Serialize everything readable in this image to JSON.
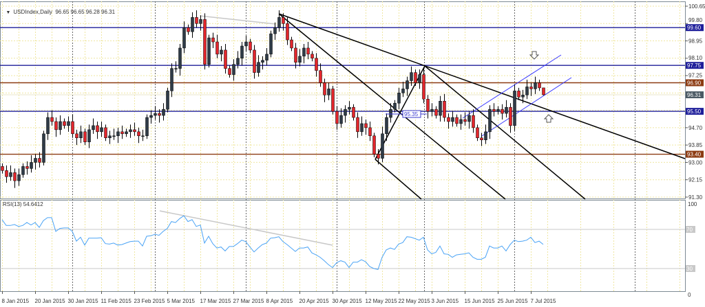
{
  "header": {
    "symbol_title": "USDIndex,Daily",
    "ohlc": "96.65 96.65 96.28 96.31"
  },
  "rsi_header": "RSI(13) 54.6412",
  "annotations": {
    "price_label": "95.35"
  },
  "colors": {
    "bull": "#2f3b47",
    "bear": "#e3262c",
    "blue_level": "#1e1e9a",
    "brown_level": "#8c3b12",
    "current": "#4b5a64",
    "rsi": "#4aa3f5",
    "grid": "#efe6a0",
    "trendline": "#000000",
    "channel": "#3838ff"
  },
  "chart_data": [
    {
      "type": "candlestick",
      "title": "USDIndex,Daily",
      "x_tick_labels": [
        "8 Jan 2015",
        "20 Jan 2015",
        "30 Jan 2015",
        "11 Feb 2015",
        "23 Feb 2015",
        "5 Mar 2015",
        "17 Mar 2015",
        "27 Mar 2015",
        "8 Apr 2015",
        "20 Apr 2015",
        "30 Apr 2015",
        "12 May 2015",
        "22 May 2015",
        "3 Jun 2015",
        "15 Jun 2015",
        "25 Jun 2015",
        "7 Jul 2015"
      ],
      "ylim": [
        91.3,
        100.65
      ],
      "y_tick_labels": [
        "100.65",
        "99.80",
        "98.95",
        "98.10",
        "97.25",
        "94.70",
        "93.85",
        "93.00",
        "92.15",
        "91.30"
      ],
      "close": [
        92.6,
        92.3,
        92.5,
        92.1,
        92.4,
        92.8,
        92.7,
        93.0,
        93.2,
        93.0,
        94.4,
        95.2,
        95.0,
        94.6,
        95.0,
        94.8,
        95.0,
        94.4,
        94.2,
        94.5,
        94.0,
        94.6,
        94.8,
        94.5,
        94.7,
        94.2,
        94.3,
        94.3,
        94.5,
        94.4,
        94.5,
        94.6,
        94.5,
        94.3,
        94.3,
        95.2,
        95.3,
        95.4,
        95.3,
        95.6,
        96.5,
        97.6,
        97.6,
        98.6,
        99.6,
        99.4,
        100.1,
        99.8,
        100.0,
        97.8,
        99.1,
        98.9,
        98.3,
        98.5,
        97.6,
        97.3,
        97.8,
        98.1,
        98.7,
        98.9,
        98.5,
        97.4,
        97.9,
        98.0,
        98.3,
        99.3,
        99.6,
        100.1,
        99.8,
        99.0,
        98.6,
        97.9,
        98.2,
        98.6,
        98.3,
        98.1,
        97.5,
        96.9,
        96.3,
        96.6,
        95.5,
        94.9,
        95.3,
        95.6,
        95.7,
        95.2,
        94.5,
        94.9,
        94.7,
        94.3,
        93.4,
        93.2,
        94.4,
        95.2,
        95.6,
        95.9,
        96.4,
        96.6,
        97.0,
        97.4,
        96.9,
        97.3,
        96.1,
        95.5,
        95.6,
        95.3,
        96.0,
        95.2,
        95.0,
        95.2,
        94.9,
        95.1,
        95.0,
        95.3,
        94.7,
        94.2,
        94.1,
        94.5,
        95.6,
        95.5,
        95.6,
        95.4,
        95.7,
        94.8,
        96.5,
        96.2,
        96.3,
        96.7,
        96.6,
        96.9,
        96.65,
        96.31
      ],
      "last_bar": {
        "open": 96.65,
        "high": 96.65,
        "low": 96.28,
        "close": 96.31
      },
      "levels": [
        {
          "value": 99.6,
          "label": "99.60",
          "color": "blue"
        },
        {
          "value": 97.75,
          "label": "97.75",
          "color": "blue"
        },
        {
          "value": 96.9,
          "label": "96.90",
          "color": "brown"
        },
        {
          "value": 96.31,
          "label": "96.31",
          "color": "current"
        },
        {
          "value": 95.5,
          "label": "95.50",
          "color": "blue"
        },
        {
          "value": 93.4,
          "label": "93.40",
          "color": "brown"
        }
      ]
    },
    {
      "type": "line",
      "title": "RSI(13) 54.6412",
      "ylim": [
        0,
        100
      ],
      "y_tick_labels": [
        "100",
        "70",
        "30",
        "0"
      ],
      "levels": [
        70,
        30
      ],
      "values": [
        80,
        74,
        74,
        75,
        73,
        74,
        77,
        74.5,
        77,
        72,
        79,
        82,
        82,
        68,
        71,
        71.5,
        71.5,
        68,
        58,
        62,
        54,
        61,
        61,
        61,
        61.5,
        55.5,
        55,
        56,
        54,
        54.5,
        56,
        57.5,
        58,
        58,
        53,
        63,
        63.5,
        65,
        64,
        68,
        71,
        78,
        77,
        81,
        84,
        78,
        80,
        73,
        74.5,
        56,
        63,
        55.5,
        51,
        52,
        48,
        52.5,
        52.5,
        55.5,
        59,
        57.5,
        52,
        47,
        51,
        54.5,
        56,
        61,
        61.5,
        62.5,
        57.5,
        54.5,
        51,
        47.5,
        51,
        51,
        52,
        46,
        44,
        41.5,
        38,
        34,
        31,
        36,
        38,
        36.5,
        31,
        36.5,
        36.5,
        39,
        37,
        32,
        30,
        29,
        41.5,
        49,
        51,
        49.5,
        55,
        56.5,
        62.5,
        62,
        60.5,
        59,
        62,
        49,
        45,
        46.5,
        53,
        45,
        44.5,
        41.5,
        44,
        44.5,
        45,
        46,
        41.5,
        39.5,
        39.5,
        41.5,
        53,
        51,
        51,
        53,
        48,
        54.5,
        59,
        57.5,
        58,
        59,
        62,
        56.5,
        58,
        54.6412
      ]
    }
  ]
}
